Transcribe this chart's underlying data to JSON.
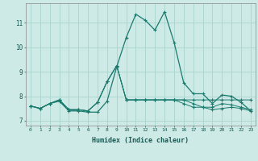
{
  "xlabel": "Humidex (Indice chaleur)",
  "xlim": [
    -0.5,
    23.5
  ],
  "ylim": [
    6.8,
    11.8
  ],
  "yticks": [
    7,
    8,
    9,
    10,
    11
  ],
  "xticks": [
    0,
    1,
    2,
    3,
    4,
    5,
    6,
    7,
    8,
    9,
    10,
    11,
    12,
    13,
    14,
    15,
    16,
    17,
    18,
    19,
    20,
    21,
    22,
    23
  ],
  "bg_color": "#ceeae6",
  "line_color": "#1a7a6e",
  "grid_color": "#aad4ce",
  "series": [
    [
      7.6,
      7.5,
      7.7,
      7.8,
      7.4,
      7.4,
      7.35,
      7.35,
      7.8,
      9.2,
      10.4,
      11.35,
      11.1,
      10.7,
      11.45,
      10.2,
      8.55,
      8.1,
      8.1,
      7.7,
      8.05,
      8.0,
      7.75,
      7.4
    ],
    [
      7.6,
      7.5,
      7.7,
      7.85,
      7.45,
      7.45,
      7.4,
      7.75,
      8.6,
      9.25,
      7.85,
      7.85,
      7.85,
      7.85,
      7.85,
      7.85,
      7.85,
      7.85,
      7.85,
      7.85,
      7.85,
      7.85,
      7.85,
      7.85
    ],
    [
      7.6,
      7.5,
      7.7,
      7.85,
      7.45,
      7.45,
      7.4,
      7.75,
      8.6,
      9.25,
      7.85,
      7.85,
      7.85,
      7.85,
      7.85,
      7.85,
      7.85,
      7.7,
      7.55,
      7.45,
      7.5,
      7.55,
      7.5,
      7.4
    ],
    [
      7.6,
      7.5,
      7.7,
      7.85,
      7.45,
      7.45,
      7.4,
      7.75,
      8.6,
      9.25,
      7.85,
      7.85,
      7.85,
      7.85,
      7.85,
      7.85,
      7.7,
      7.55,
      7.55,
      7.55,
      7.7,
      7.65,
      7.55,
      7.45
    ]
  ]
}
